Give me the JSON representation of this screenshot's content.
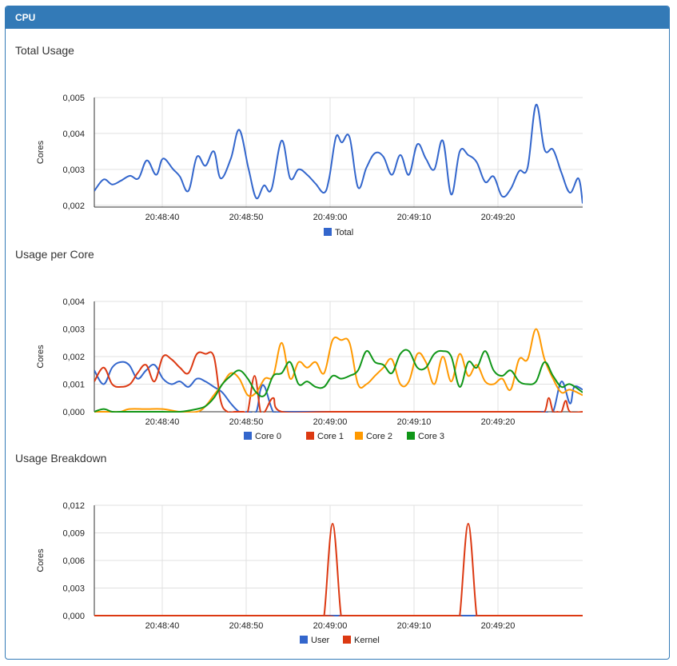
{
  "panel": {
    "title": "CPU"
  },
  "charts": [
    {
      "title": "Total Usage",
      "ylabel": "Cores",
      "y_ticks": [
        "0,005",
        "0,004",
        "0,003",
        "0,002"
      ],
      "x_ticks": [
        "20:48:40",
        "20:48:50",
        "20:49:00",
        "20:49:10",
        "20:49:20"
      ],
      "legend": [
        {
          "name": "Total",
          "color": "#3366cc"
        }
      ]
    },
    {
      "title": "Usage per Core",
      "ylabel": "Cores",
      "y_ticks": [
        "0,004",
        "0,003",
        "0,002",
        "0,001",
        "0,000"
      ],
      "x_ticks": [
        "20:48:40",
        "20:48:50",
        "20:49:00",
        "20:49:10",
        "20:49:20"
      ],
      "legend": [
        {
          "name": "Core 0",
          "color": "#3366cc"
        },
        {
          "name": "Core 1",
          "color": "#dc3912"
        },
        {
          "name": "Core 2",
          "color": "#ff9900"
        },
        {
          "name": "Core 3",
          "color": "#109618"
        }
      ]
    },
    {
      "title": "Usage Breakdown",
      "ylabel": "Cores",
      "y_ticks": [
        "0,012",
        "0,009",
        "0,006",
        "0,003",
        "0,000"
      ],
      "x_ticks": [
        "20:48:40",
        "20:48:50",
        "20:49:00",
        "20:49:10",
        "20:49:20"
      ],
      "legend": [
        {
          "name": "User",
          "color": "#3366cc"
        },
        {
          "name": "Kernel",
          "color": "#dc3912"
        }
      ]
    }
  ],
  "chart_data": [
    {
      "type": "line",
      "ylim": [
        0.00195,
        0.005
      ],
      "x_start": 31.9,
      "x_end": 89.5,
      "grid": true,
      "legend_position": "bottom",
      "series": [
        {
          "name": "Total",
          "color": "#3366cc",
          "x": [
            31.9,
            33.0,
            34.0,
            35.0,
            36.1,
            37.1,
            38.1,
            39.2,
            40.0,
            41.2,
            42.0,
            43.0,
            44.0,
            45.0,
            46.0,
            46.8,
            48.0,
            49.0,
            50.1,
            51.0,
            51.9,
            52.8,
            54.0,
            55.0,
            56.0,
            57.0,
            58.0,
            59.0,
            59.6,
            60.4,
            61.1,
            62.0,
            63.0,
            64.0,
            65.0,
            66.0,
            67.0,
            68.0,
            69.0,
            70.0,
            71.0,
            72.0,
            73.0,
            74.0,
            75.0,
            76.0,
            77.0,
            78.0,
            79.0,
            80.0,
            81.0,
            82.0,
            83.0,
            84.0,
            85.0,
            86.0,
            87.0,
            88.0,
            89.0,
            89.5
          ],
          "y": [
            0.0024,
            0.00272,
            0.00258,
            0.00268,
            0.00282,
            0.00275,
            0.00325,
            0.00285,
            0.0033,
            0.003,
            0.0028,
            0.0024,
            0.00335,
            0.0031,
            0.0035,
            0.00275,
            0.0033,
            0.0041,
            0.003,
            0.0022,
            0.00255,
            0.00245,
            0.0038,
            0.00275,
            0.003,
            0.00285,
            0.0026,
            0.00235,
            0.00275,
            0.0039,
            0.00375,
            0.0039,
            0.0025,
            0.00305,
            0.00345,
            0.00335,
            0.00285,
            0.0034,
            0.00285,
            0.0037,
            0.0033,
            0.003,
            0.0038,
            0.0023,
            0.0035,
            0.0034,
            0.0032,
            0.00265,
            0.0028,
            0.00225,
            0.00245,
            0.00295,
            0.00305,
            0.0048,
            0.00355,
            0.00355,
            0.0029,
            0.00235,
            0.00275,
            0.00205
          ]
        }
      ]
    },
    {
      "type": "line",
      "ylim": [
        0,
        0.004
      ],
      "x_start": 31.9,
      "x_end": 89.5,
      "grid": true,
      "legend_position": "bottom",
      "series": [
        {
          "name": "Core 0",
          "color": "#3366cc",
          "x": [
            31.9,
            33.0,
            34.0,
            35.0,
            36.0,
            37.0,
            38.0,
            39.0,
            40.0,
            41.0,
            42.0,
            43.0,
            44.0,
            45.0,
            46.0,
            47.0,
            48.0,
            49.0,
            50.0,
            51.0,
            51.5,
            52.0,
            53.0,
            54.0,
            60.0,
            70.0,
            80.0,
            84.0,
            85.0,
            86.0,
            87.0,
            88.0,
            88.5,
            89.5
          ],
          "y": [
            0.0015,
            0.001,
            0.0016,
            0.0018,
            0.0017,
            0.0012,
            0.0015,
            0.0017,
            0.0012,
            0.001,
            0.0011,
            0.0009,
            0.0012,
            0.0011,
            0.0009,
            0.0007,
            0.0003,
            0.0,
            0.0,
            0.0,
            0.0008,
            0.0009,
            0.0,
            0.0,
            0.0,
            0.0,
            0.0,
            0.0,
            0.0,
            0.0,
            0.0011,
            0.0003,
            0.0009,
            0.0008
          ]
        },
        {
          "name": "Core 1",
          "color": "#dc3912",
          "x": [
            31.9,
            33.0,
            34.0,
            35.0,
            36.1,
            37.0,
            38.0,
            39.0,
            40.0,
            41.0,
            42.0,
            43.0,
            44.0,
            45.0,
            46.0,
            46.8,
            47.6,
            48.5,
            49.5,
            50.0,
            50.8,
            51.5,
            52.0,
            53.0,
            54.0,
            60.0,
            70.0,
            80.0,
            84.0,
            85.0,
            85.5,
            86.0,
            86.5,
            87.0,
            87.5,
            88.0,
            89.5
          ],
          "y": [
            0.0011,
            0.0016,
            0.001,
            0.0009,
            0.001,
            0.0014,
            0.0017,
            0.0011,
            0.002,
            0.0019,
            0.0016,
            0.0014,
            0.0021,
            0.0021,
            0.002,
            0.0004,
            0.0,
            0.0,
            0.0,
            0.0,
            0.0013,
            0.0,
            0.0,
            0.0005,
            0.0,
            0.0,
            0.0,
            0.0,
            0.0,
            0.0,
            0.0005,
            0.0,
            0.0,
            0.0,
            0.0004,
            0.0,
            0.0
          ]
        },
        {
          "name": "Core 2",
          "color": "#ff9900",
          "x": [
            31.9,
            34.0,
            35.0,
            36.0,
            38.0,
            40.0,
            42.0,
            44.0,
            45.0,
            46.0,
            47.0,
            48.0,
            49.0,
            50.0,
            51.0,
            52.0,
            53.0,
            54.0,
            55.0,
            56.0,
            57.0,
            58.0,
            59.0,
            60.0,
            61.0,
            62.0,
            63.0,
            64.0,
            65.0,
            66.0,
            67.0,
            68.0,
            69.0,
            70.0,
            71.0,
            72.0,
            73.0,
            74.0,
            75.0,
            76.0,
            77.0,
            78.0,
            79.0,
            80.0,
            81.0,
            82.0,
            83.0,
            84.0,
            85.0,
            86.0,
            87.0,
            88.0,
            89.5
          ],
          "y": [
            0.0,
            0.0,
            0.0,
            0.0001,
            0.0001,
            0.0001,
            0.0,
            0.0,
            0.0002,
            0.0006,
            0.001,
            0.0014,
            0.0012,
            0.0006,
            0.0007,
            0.0012,
            0.0013,
            0.0025,
            0.0012,
            0.0018,
            0.0016,
            0.0018,
            0.0014,
            0.0026,
            0.0026,
            0.0025,
            0.001,
            0.001,
            0.0013,
            0.0016,
            0.0019,
            0.001,
            0.0011,
            0.0021,
            0.0018,
            0.001,
            0.002,
            0.0011,
            0.0021,
            0.0013,
            0.0017,
            0.0011,
            0.001,
            0.0012,
            0.0008,
            0.0019,
            0.0019,
            0.003,
            0.0019,
            0.0012,
            0.0007,
            0.0008,
            0.0006
          ]
        },
        {
          "name": "Core 3",
          "color": "#109618",
          "x": [
            31.9,
            33.0,
            34.0,
            35.0,
            36.0,
            38.0,
            40.0,
            42.0,
            44.0,
            45.0,
            46.0,
            47.0,
            48.0,
            49.0,
            50.0,
            51.0,
            52.0,
            53.0,
            54.0,
            55.0,
            56.0,
            57.0,
            58.0,
            59.0,
            60.0,
            61.0,
            62.0,
            63.0,
            64.0,
            65.0,
            66.0,
            67.0,
            68.0,
            69.0,
            70.0,
            71.0,
            72.0,
            73.0,
            74.0,
            75.0,
            76.0,
            77.0,
            78.0,
            79.0,
            80.0,
            81.0,
            82.0,
            83.0,
            84.0,
            85.0,
            86.0,
            87.0,
            88.0,
            89.5
          ],
          "y": [
            0.0,
            0.0001,
            0.0,
            0.0,
            0.0,
            0.0,
            0.0,
            0.0,
            0.0001,
            0.0002,
            0.0005,
            0.001,
            0.0013,
            0.0015,
            0.0012,
            0.0007,
            0.0006,
            0.0013,
            0.0014,
            0.0018,
            0.001,
            0.0011,
            0.0009,
            0.0009,
            0.0013,
            0.0012,
            0.0013,
            0.0015,
            0.0022,
            0.0018,
            0.0017,
            0.0014,
            0.0021,
            0.0022,
            0.0016,
            0.0016,
            0.0021,
            0.0022,
            0.002,
            0.0009,
            0.0018,
            0.0016,
            0.0022,
            0.0015,
            0.0013,
            0.0015,
            0.0011,
            0.001,
            0.0011,
            0.0018,
            0.0013,
            0.0009,
            0.001,
            0.0007
          ]
        }
      ]
    },
    {
      "type": "line",
      "ylim": [
        0,
        0.012
      ],
      "x_start": 31.9,
      "x_end": 89.5,
      "grid": true,
      "legend_position": "bottom",
      "series": [
        {
          "name": "User",
          "color": "#3366cc",
          "x": [
            31.9,
            89.5
          ],
          "y": [
            0.0,
            0.0
          ]
        },
        {
          "name": "Kernel",
          "color": "#dc3912",
          "x": [
            31.9,
            58.4,
            59.0,
            60.0,
            61.0,
            61.6,
            74.4,
            75.0,
            76.0,
            77.0,
            77.6,
            89.5
          ],
          "y": [
            0.0,
            0.0,
            0.0,
            0.01,
            0.0,
            0.0,
            0.0,
            0.0,
            0.01,
            0.0,
            0.0,
            0.0
          ]
        }
      ]
    }
  ]
}
